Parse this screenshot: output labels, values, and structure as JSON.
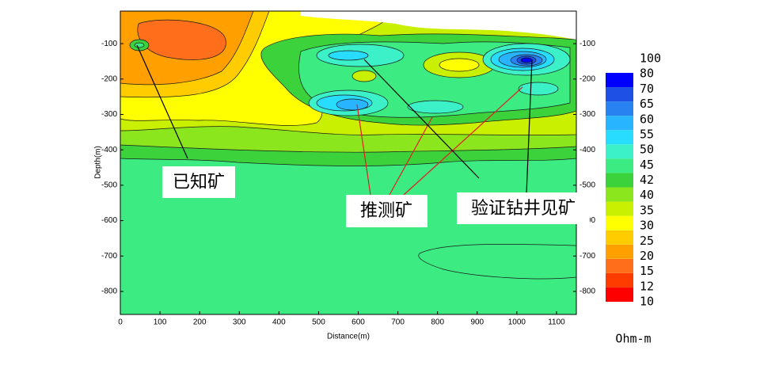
{
  "chart_data": {
    "type": "contour",
    "x_label": "Distance(m)",
    "y_label": "Depth(m)",
    "xlim": [
      0,
      1150
    ],
    "xticks": [
      0,
      100,
      200,
      300,
      400,
      500,
      600,
      700,
      800,
      900,
      1000,
      1100
    ],
    "ylim": [
      -865,
      -8
    ],
    "yticks": [
      -100,
      -200,
      -300,
      -400,
      -500,
      -600,
      -700,
      -800
    ],
    "levels": [
      10,
      12,
      15,
      20,
      25,
      30,
      35,
      40,
      42,
      45,
      50,
      55,
      60,
      65,
      70,
      80,
      100
    ],
    "colors": [
      "#ff0000",
      "#ff3c00",
      "#ff6e1a",
      "#ffa000",
      "#ffcc00",
      "#ffff00",
      "#c8f000",
      "#8ce61e",
      "#3cd23c",
      "#3ceb82",
      "#3cf0c8",
      "#28dcff",
      "#28b4ff",
      "#2882f0",
      "#1e50e6",
      "#0000ff"
    ],
    "colorbar_label": "Ohm-m",
    "annotations": [
      "已知矿",
      "推测矿",
      "验证钻井见矿"
    ]
  }
}
